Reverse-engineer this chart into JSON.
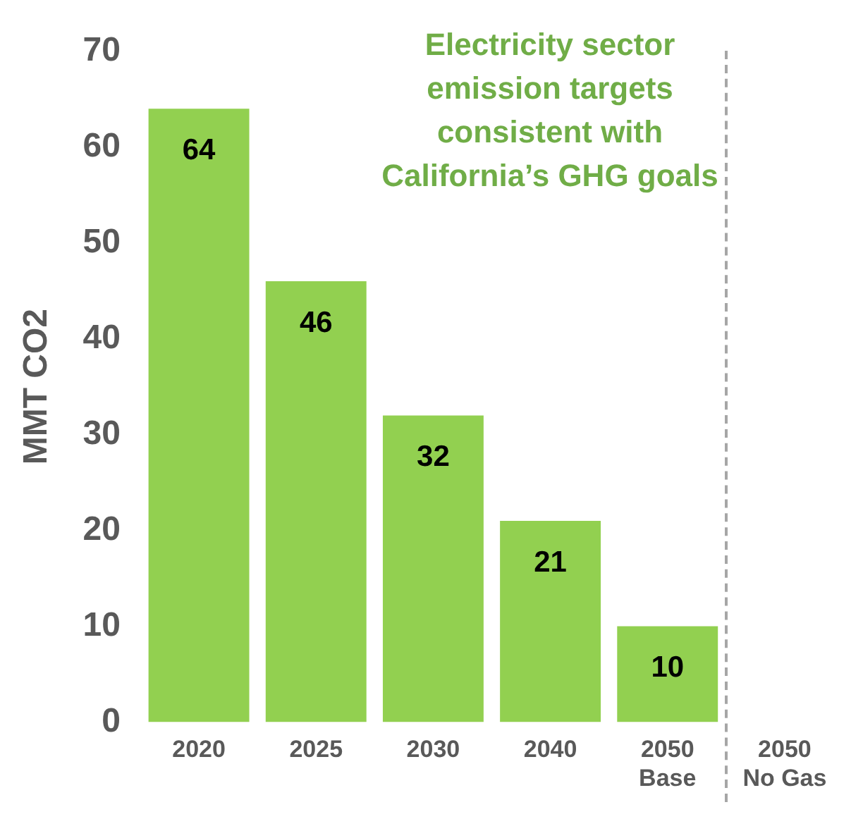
{
  "chart_data": {
    "type": "bar",
    "title": "Electricity sector emission targets consistent with California’s GHG goals",
    "ylabel": "MMT CO2",
    "categories": [
      "2020",
      "2025",
      "2030",
      "2040",
      "2050\nBase",
      "2050\nNo Gas"
    ],
    "values": [
      64,
      46,
      32,
      21,
      10,
      0
    ],
    "value_labels": [
      "64",
      "46",
      "32",
      "21",
      "10",
      null
    ],
    "color": "#92d050",
    "ylim": [
      0,
      70
    ],
    "yticks": [
      0,
      10,
      20,
      30,
      40,
      50,
      60,
      70
    ],
    "grid": false,
    "legend": false
  }
}
